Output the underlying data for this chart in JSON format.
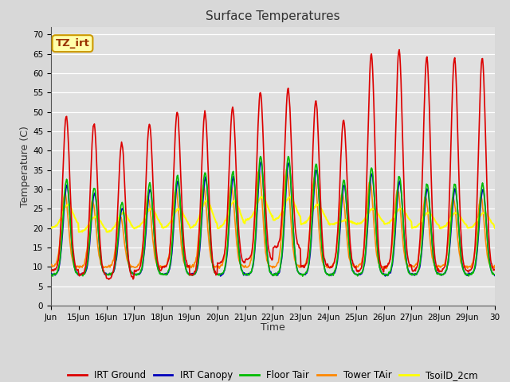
{
  "title": "Surface Temperatures",
  "xlabel": "Time",
  "ylabel": "Temperature (C)",
  "ylim": [
    0,
    72
  ],
  "yticks": [
    0,
    5,
    10,
    15,
    20,
    25,
    30,
    35,
    40,
    45,
    50,
    55,
    60,
    65,
    70
  ],
  "background_color": "#d8d8d8",
  "plot_bg_color": "#e0e0e0",
  "series": {
    "IRT Ground": {
      "color": "#dd0000",
      "lw": 1.2
    },
    "IRT Canopy": {
      "color": "#0000bb",
      "lw": 1.2
    },
    "Floor Tair": {
      "color": "#00bb00",
      "lw": 1.2
    },
    "Tower TAir": {
      "color": "#ff8800",
      "lw": 1.2
    },
    "TsoilD_2cm": {
      "color": "#ffff00",
      "lw": 1.5
    }
  },
  "annotation_text": "TZ_irt",
  "annotation_color": "#993300",
  "annotation_bg": "#ffffaa",
  "annotation_border": "#cc9900",
  "title_fontsize": 11,
  "axis_label_fontsize": 9,
  "tick_fontsize": 7.5,
  "legend_fontsize": 8.5,
  "irt_ground_peaks": [
    49,
    47,
    42,
    47,
    50,
    50,
    51,
    55,
    56,
    53,
    48,
    65,
    66,
    64
  ],
  "irt_ground_nights": [
    9,
    8,
    7,
    9,
    10,
    8,
    11,
    12,
    15,
    10,
    10,
    9,
    10,
    9
  ],
  "canopy_peaks": [
    31,
    29,
    25,
    30,
    32,
    33,
    33,
    37,
    37,
    35,
    31,
    34,
    32,
    30
  ],
  "tsoil_nights": [
    20,
    19,
    19,
    20,
    20,
    20,
    20,
    22,
    22,
    21,
    21,
    21,
    21,
    20
  ],
  "tsoil_peaks": [
    26,
    23,
    24,
    25,
    25,
    27,
    27,
    28,
    28,
    26,
    22,
    25,
    25,
    24
  ]
}
